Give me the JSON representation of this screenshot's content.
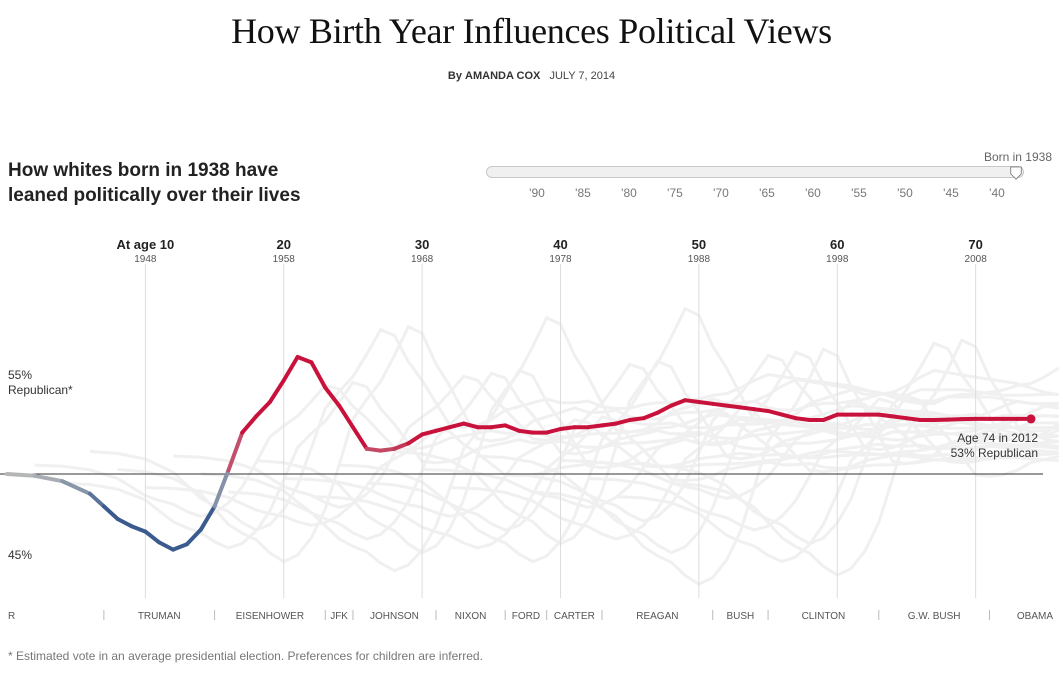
{
  "header": {
    "title": "How Birth Year Influences Political Views",
    "byline_prefix": "By",
    "author": "AMANDA COX",
    "date": "JULY 7, 2014"
  },
  "subhead": "How whites born in 1938 have leaned politically over their lives",
  "slider": {
    "label": "Born in 1938",
    "selected_value": 1938,
    "ticks": [
      "'90",
      "'85",
      "'80",
      "'75",
      "'70",
      "'65",
      "'60",
      "'55",
      "'50",
      "'45",
      "'40"
    ]
  },
  "footnote": "* Estimated vote in an average presidential election. Preferences for children are inferred.",
  "colors": {
    "republican": "#c8123c",
    "democrat": "#3b5a8e",
    "neutral": "#b8b8b8",
    "background_lines": "#f0f0f0"
  },
  "chart_data": {
    "type": "line",
    "title": "How whites born in 1938 have leaned politically over their lives",
    "xlabel": "",
    "ylabel": "",
    "xlim": [
      1938,
      2014
    ],
    "ylim": [
      43,
      58
    ],
    "baseline": 50,
    "y_labels": [
      {
        "value": 55,
        "lines": [
          "55%",
          "Republican*"
        ]
      },
      {
        "value": 45,
        "lines": [
          "45%"
        ]
      }
    ],
    "age_markers": [
      {
        "label": "At age 10",
        "year": 1948
      },
      {
        "label": "20",
        "year": 1958
      },
      {
        "label": "30",
        "year": 1968
      },
      {
        "label": "40",
        "year": 1978
      },
      {
        "label": "50",
        "year": 1988
      },
      {
        "label": "60",
        "year": 1998
      },
      {
        "label": "70",
        "year": 2008
      }
    ],
    "presidents": [
      {
        "name": "R",
        "start": 1933,
        "end": 1945
      },
      {
        "name": "TRUMAN",
        "start": 1945,
        "end": 1953
      },
      {
        "name": "EISENHOWER",
        "start": 1953,
        "end": 1961
      },
      {
        "name": "JFK",
        "start": 1961,
        "end": 1963
      },
      {
        "name": "JOHNSON",
        "start": 1963,
        "end": 1969
      },
      {
        "name": "NIXON",
        "start": 1969,
        "end": 1974
      },
      {
        "name": "FORD",
        "start": 1974,
        "end": 1977
      },
      {
        "name": "CARTER",
        "start": 1977,
        "end": 1981
      },
      {
        "name": "REAGAN",
        "start": 1981,
        "end": 1989
      },
      {
        "name": "BUSH",
        "start": 1989,
        "end": 1993
      },
      {
        "name": "CLINTON",
        "start": 1993,
        "end": 2001
      },
      {
        "name": "G.W. BUSH",
        "start": 2001,
        "end": 2009
      },
      {
        "name": "OBAMA",
        "start": 2009,
        "end": 2014
      }
    ],
    "annotation": {
      "year": 2012,
      "value": 53,
      "lines": [
        "Age 74 in 2012",
        "53% Republican"
      ]
    },
    "series": [
      {
        "years": [
          1938,
          1940,
          1942,
          1944,
          1945,
          1946,
          1947,
          1948,
          1949,
          1950,
          1951,
          1952,
          1953,
          1954,
          1955,
          1956,
          1957,
          1958,
          1959,
          1960,
          1961,
          1962,
          1963,
          1964,
          1965,
          1966,
          1967,
          1968,
          1969,
          1970,
          1971,
          1972,
          1973,
          1974,
          1975,
          1976,
          1977,
          1978,
          1979,
          1980,
          1981,
          1982,
          1983,
          1984,
          1985,
          1986,
          1987,
          1988,
          1989,
          1990,
          1991,
          1992,
          1993,
          1994,
          1995,
          1996,
          1997,
          1998,
          1999,
          2000,
          2001,
          2002,
          2003,
          2004,
          2005,
          2006,
          2007,
          2008,
          2009,
          2010,
          2011,
          2012
        ],
        "values": [
          50,
          49.9,
          49.6,
          48.9,
          48.2,
          47.5,
          47.1,
          46.8,
          46.2,
          45.8,
          46.1,
          46.9,
          48.2,
          50.2,
          52.3,
          53.2,
          54.0,
          55.2,
          56.5,
          56.2,
          54.8,
          53.8,
          52.6,
          51.4,
          51.3,
          51.4,
          51.7,
          52.2,
          52.4,
          52.6,
          52.8,
          52.6,
          52.6,
          52.7,
          52.4,
          52.3,
          52.3,
          52.5,
          52.6,
          52.6,
          52.7,
          52.8,
          53.0,
          53.1,
          53.4,
          53.8,
          54.1,
          54.0,
          53.9,
          53.8,
          53.7,
          53.6,
          53.5,
          53.3,
          53.1,
          53.0,
          53.0,
          53.3,
          53.3,
          53.3,
          53.3,
          53.2,
          53.1,
          53.0,
          53.0,
          53.02,
          53.05,
          53.06,
          53.06,
          53.06,
          53.06,
          53.06
        ]
      }
    ]
  }
}
